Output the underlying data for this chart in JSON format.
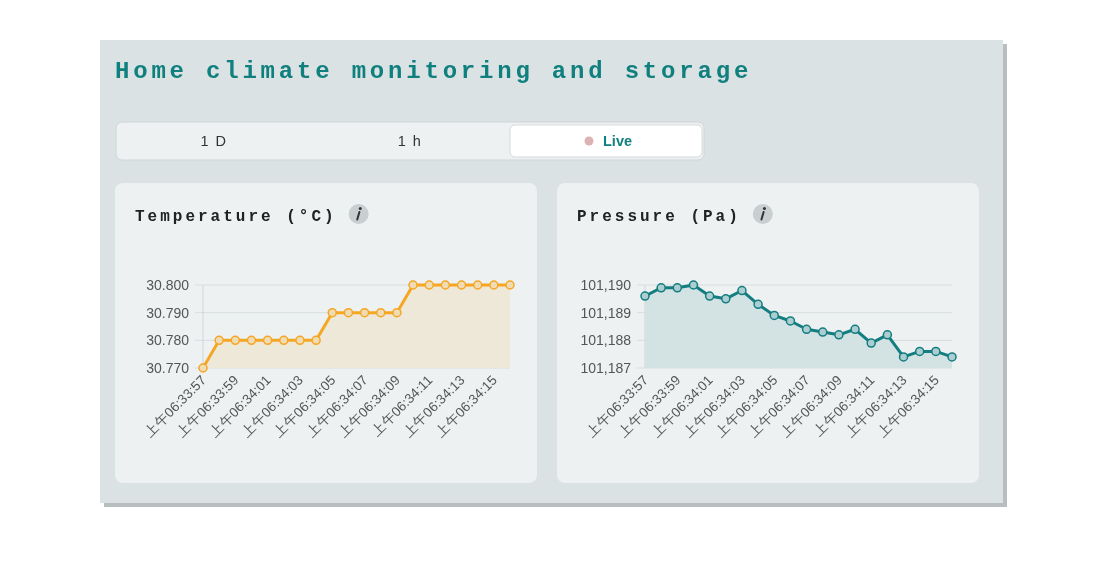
{
  "chart_data": [
    {
      "type": "other",
      "title": "Home climate monitoring and storage",
      "annotations": [
        "1 D",
        "1 h",
        "Live"
      ]
    },
    {
      "type": "area",
      "title": "Temperature (°C)",
      "categories": [
        "上午06:33:57",
        null,
        "上午06:33:59",
        null,
        "上午06:34:01",
        null,
        "上午06:34:03",
        null,
        "上午06:34:05",
        null,
        "上午06:34:07",
        null,
        "上午06:34:09",
        null,
        "上午06:34:11",
        null,
        "上午06:34:13",
        null,
        "上午06:34:15",
        null
      ],
      "values": [
        30.77,
        30.78,
        30.78,
        30.78,
        30.78,
        30.78,
        30.78,
        30.78,
        30.79,
        30.79,
        30.79,
        30.79,
        30.79,
        30.8,
        30.8,
        30.8,
        30.8,
        30.8,
        30.8,
        30.8
      ],
      "color": "#f5a623",
      "ylim": [
        30.77,
        30.8
      ],
      "yticks": [
        {
          "value": 30.77,
          "label": "30.770"
        },
        {
          "value": 30.78,
          "label": "30.780"
        },
        {
          "value": 30.79,
          "label": "30.790"
        },
        {
          "value": 30.8,
          "label": "30.800"
        }
      ],
      "grid": "y",
      "marker": "circle"
    },
    {
      "type": "area",
      "title": "Pressure (Pa)",
      "categories": [
        "上午06:33:57",
        null,
        "上午06:33:59",
        null,
        "上午06:34:01",
        null,
        "上午06:34:03",
        null,
        "上午06:34:05",
        null,
        "上午06:34:07",
        null,
        "上午06:34:09",
        null,
        "上午06:34:11",
        null,
        "上午06:34:13",
        null,
        "上午06:34:15",
        null
      ],
      "values": [
        101189.6,
        101189.9,
        101189.9,
        101190.0,
        101189.6,
        101189.5,
        101189.8,
        101189.3,
        101188.9,
        101188.7,
        101188.4,
        101188.3,
        101188.2,
        101188.4,
        101187.9,
        101188.2,
        101187.4,
        101187.6,
        101187.6,
        101187.4
      ],
      "color": "#137d80",
      "ylim": [
        101187,
        101190
      ],
      "yticks": [
        {
          "value": 101187,
          "label": "101,187"
        },
        {
          "value": 101188,
          "label": "101,188"
        },
        {
          "value": 101189,
          "label": "101,189"
        },
        {
          "value": 101190,
          "label": "101,190"
        }
      ],
      "grid": "y",
      "marker": "circle"
    }
  ]
}
